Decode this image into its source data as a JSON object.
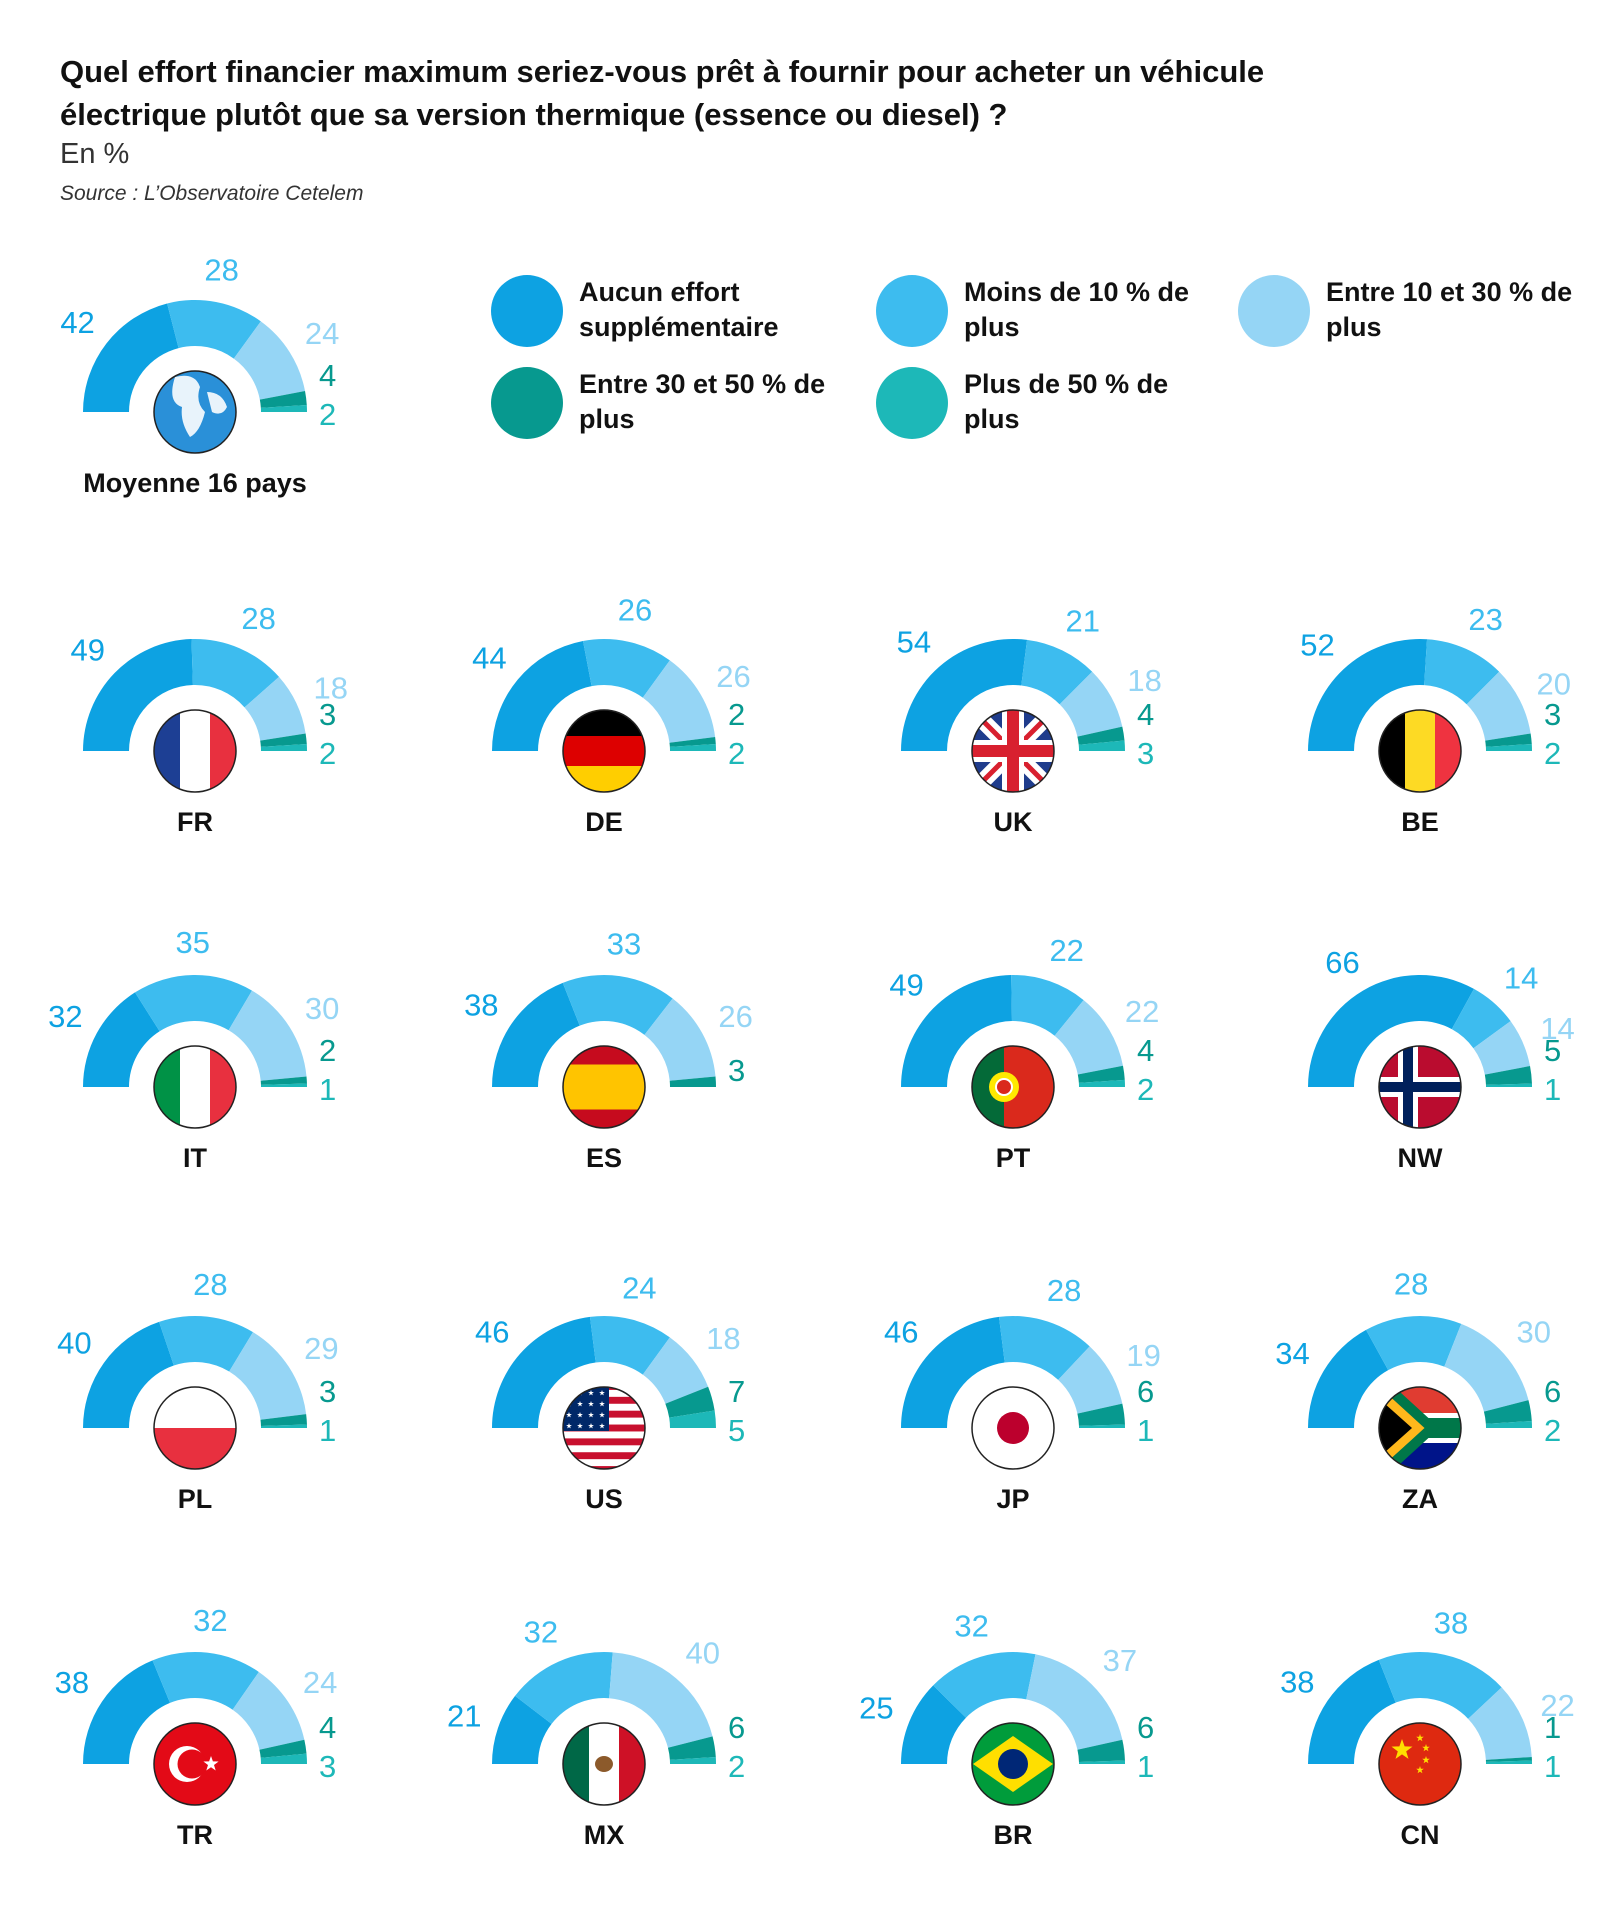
{
  "chart_data": {
    "type": "semi-donut",
    "title": "Quel effort financier maximum seriez-vous prêt à fournir pour acheter un véhicule électrique plutôt que sa version thermique (essence ou diesel) ?",
    "subtitle": "En %",
    "source": "Source : L’Observatoire Cetelem",
    "categories": [
      "Moyenne 16 pays",
      "FR",
      "DE",
      "UK",
      "BE",
      "IT",
      "ES",
      "PT",
      "NW",
      "PL",
      "US",
      "JP",
      "ZA",
      "TR",
      "MX",
      "BR",
      "CN"
    ],
    "series": [
      {
        "name": "Aucun effort supplémentaire",
        "color": "#0da2e2",
        "values": [
          42,
          49,
          44,
          54,
          52,
          32,
          38,
          49,
          66,
          40,
          46,
          46,
          34,
          38,
          21,
          25,
          38
        ]
      },
      {
        "name": "Moins de 10 % de plus",
        "color": "#3dbcef",
        "values": [
          28,
          28,
          26,
          21,
          23,
          35,
          33,
          22,
          14,
          28,
          24,
          28,
          28,
          32,
          32,
          32,
          38
        ]
      },
      {
        "name": "Entre 10 et 30 % de plus",
        "color": "#95d5f5",
        "values": [
          24,
          18,
          26,
          18,
          20,
          30,
          26,
          22,
          14,
          29,
          18,
          19,
          30,
          24,
          40,
          37,
          22
        ]
      },
      {
        "name": "Entre 30 et 50 % de plus",
        "color": "#07998f",
        "values": [
          4,
          3,
          2,
          4,
          3,
          2,
          3,
          4,
          5,
          3,
          7,
          6,
          6,
          4,
          6,
          6,
          1
        ]
      },
      {
        "name": "Plus de 50 % de plus",
        "color": "#1db8b8",
        "values": [
          2,
          2,
          2,
          3,
          2,
          1,
          null,
          2,
          1,
          1,
          5,
          1,
          2,
          3,
          2,
          1,
          1
        ]
      }
    ]
  }
}
